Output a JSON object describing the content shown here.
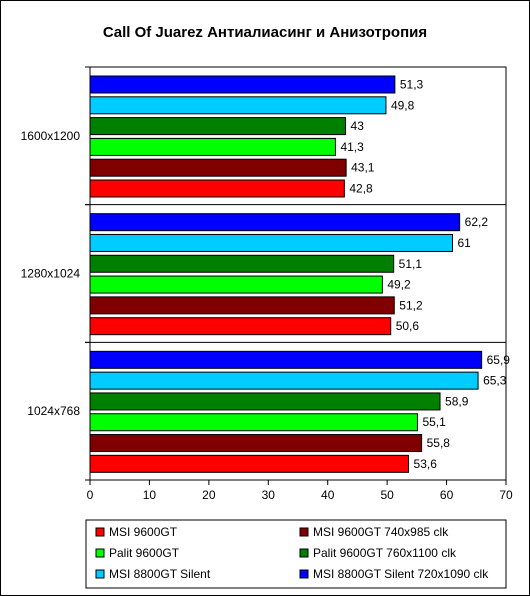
{
  "chart_data": {
    "type": "bar",
    "orientation": "horizontal",
    "title": "Call Of Juarez Антиалиасинг и Анизотропия",
    "categories": [
      "1600x1200",
      "1280x1024",
      "1024x768"
    ],
    "xlim": [
      0,
      70
    ],
    "xticks": [
      0,
      10,
      20,
      30,
      40,
      50,
      60,
      70
    ],
    "series": [
      {
        "name": "MSI 8800GT Silent 720x1090 clk",
        "color": "#0000FF",
        "values": [
          51.3,
          62.2,
          65.9
        ],
        "labels": [
          "51,3",
          "62,2",
          "65,9"
        ]
      },
      {
        "name": "MSI 8800GT Silent",
        "color": "#00CCFF",
        "values": [
          49.8,
          61,
          65.3
        ],
        "labels": [
          "49,8",
          "61",
          "65,3"
        ]
      },
      {
        "name": "Palit 9600GT 760x1100 clk",
        "color": "#008000",
        "values": [
          43,
          51.1,
          58.9
        ],
        "labels": [
          "43",
          "51,1",
          "58,9"
        ]
      },
      {
        "name": "Palit 9600GT",
        "color": "#00FF00",
        "values": [
          41.3,
          49.2,
          55.1
        ],
        "labels": [
          "41,3",
          "49,2",
          "55,1"
        ]
      },
      {
        "name": "MSI 9600GT 740x985 clk",
        "color": "#800000",
        "values": [
          43.1,
          51.2,
          55.8
        ],
        "labels": [
          "43,1",
          "51,2",
          "55,8"
        ]
      },
      {
        "name": "MSI 9600GT",
        "color": "#FF0000",
        "values": [
          42.8,
          50.6,
          53.6
        ],
        "labels": [
          "42,8",
          "50,6",
          "53,6"
        ]
      }
    ],
    "legend": {
      "placement": "bottom",
      "order": [
        "MSI 9600GT",
        "MSI 9600GT 740x985 clk",
        "Palit 9600GT",
        "Palit 9600GT 760x1100 clk",
        "MSI 8800GT Silent",
        "MSI 8800GT Silent 720x1090 clk"
      ]
    },
    "grid": false
  }
}
